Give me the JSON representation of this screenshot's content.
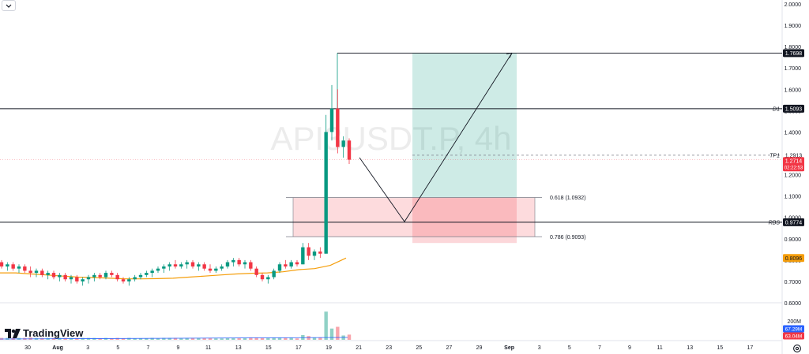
{
  "chart_data": {
    "type": "candlestick",
    "symbol_watermark": "API3USDT.P, 4h",
    "price_axis": {
      "scale": "linear",
      "range": [
        0.6,
        2.0
      ],
      "ticks": [
        "2.0000",
        "1.9000",
        "1.8000",
        "1.7000",
        "1.6000",
        "1.5000",
        "1.4000",
        "1.3000",
        "1.2000",
        "1.1000",
        "1.0000",
        "0.9000",
        "0.8000",
        "0.7000",
        "0.6000"
      ]
    },
    "time_axis": {
      "labels": [
        "30",
        "Aug",
        "3",
        "5",
        "7",
        "9",
        "11",
        "13",
        "15",
        "17",
        "19",
        "21",
        "23",
        "25",
        "27",
        "29",
        "Sep",
        "3",
        "5",
        "7",
        "9",
        "11",
        "13",
        "15",
        "17"
      ],
      "bold_labels": [
        "Aug",
        "Sep"
      ]
    },
    "horizontal_levels": [
      {
        "name": "D1",
        "price": 1.5093,
        "label": "1.5093",
        "style": "solid"
      },
      {
        "name": "RBS",
        "price": 0.9774,
        "label": "0.9774",
        "style": "solid"
      },
      {
        "name": "",
        "price": 1.7698,
        "label": "1.7698",
        "style": "thin"
      },
      {
        "name": "TP1",
        "price": 1.2913,
        "label": "1.2913",
        "style": "dashed"
      }
    ],
    "current_price": {
      "price": 1.2714,
      "label": "1.2714",
      "countdown": "02:22:53",
      "color": "#f23645"
    },
    "moving_average": {
      "label": "0.8096",
      "color": "#f59e0b",
      "values": [
        0.74,
        0.74,
        0.735,
        0.73,
        0.725,
        0.72,
        0.718,
        0.715,
        0.712,
        0.712,
        0.713,
        0.715,
        0.72,
        0.725,
        0.73,
        0.735,
        0.738,
        0.74,
        0.745,
        0.755,
        0.76,
        0.775,
        0.8096
      ]
    },
    "fib_zone": {
      "upper": {
        "label": "0.618 (1.0932)",
        "price": 1.0932
      },
      "lower": {
        "label": "0.786 (0.9093)",
        "price": 0.9093
      }
    },
    "position_tool": {
      "target": 1.7698,
      "entry": 1.0932,
      "stop": 0.88
    },
    "projection_path": [
      1.28,
      0.98,
      1.77
    ],
    "volume": {
      "axis_label": "200M",
      "labels": [
        {
          "text": "67.29M",
          "color": "#2962ff"
        },
        {
          "text": "63.04M",
          "color": "#f23645"
        }
      ]
    },
    "candles": [
      [
        0.79,
        0.8,
        0.76,
        0.77
      ],
      [
        0.77,
        0.79,
        0.75,
        0.78
      ],
      [
        0.78,
        0.79,
        0.75,
        0.76
      ],
      [
        0.76,
        0.78,
        0.74,
        0.77
      ],
      [
        0.77,
        0.78,
        0.74,
        0.75
      ],
      [
        0.75,
        0.77,
        0.72,
        0.74
      ],
      [
        0.74,
        0.76,
        0.72,
        0.75
      ],
      [
        0.75,
        0.76,
        0.72,
        0.73
      ],
      [
        0.73,
        0.75,
        0.71,
        0.74
      ],
      [
        0.74,
        0.75,
        0.71,
        0.72
      ],
      [
        0.72,
        0.74,
        0.7,
        0.73
      ],
      [
        0.73,
        0.74,
        0.7,
        0.71
      ],
      [
        0.71,
        0.73,
        0.69,
        0.72
      ],
      [
        0.72,
        0.73,
        0.69,
        0.7
      ],
      [
        0.7,
        0.72,
        0.68,
        0.71
      ],
      [
        0.71,
        0.73,
        0.69,
        0.72
      ],
      [
        0.72,
        0.74,
        0.7,
        0.73
      ],
      [
        0.73,
        0.74,
        0.71,
        0.72
      ],
      [
        0.72,
        0.75,
        0.71,
        0.74
      ],
      [
        0.74,
        0.75,
        0.72,
        0.73
      ],
      [
        0.73,
        0.74,
        0.7,
        0.71
      ],
      [
        0.71,
        0.72,
        0.69,
        0.7
      ],
      [
        0.7,
        0.72,
        0.68,
        0.71
      ],
      [
        0.71,
        0.73,
        0.7,
        0.72
      ],
      [
        0.72,
        0.74,
        0.71,
        0.73
      ],
      [
        0.73,
        0.75,
        0.72,
        0.74
      ],
      [
        0.74,
        0.76,
        0.72,
        0.75
      ],
      [
        0.75,
        0.77,
        0.74,
        0.76
      ],
      [
        0.76,
        0.78,
        0.74,
        0.77
      ],
      [
        0.77,
        0.79,
        0.75,
        0.78
      ],
      [
        0.78,
        0.8,
        0.76,
        0.77
      ],
      [
        0.77,
        0.79,
        0.76,
        0.78
      ],
      [
        0.78,
        0.8,
        0.76,
        0.79
      ],
      [
        0.79,
        0.8,
        0.76,
        0.77
      ],
      [
        0.77,
        0.79,
        0.75,
        0.78
      ],
      [
        0.78,
        0.79,
        0.75,
        0.76
      ],
      [
        0.76,
        0.78,
        0.74,
        0.75
      ],
      [
        0.75,
        0.77,
        0.74,
        0.76
      ],
      [
        0.76,
        0.78,
        0.75,
        0.77
      ],
      [
        0.77,
        0.8,
        0.76,
        0.79
      ],
      [
        0.79,
        0.81,
        0.77,
        0.8
      ],
      [
        0.8,
        0.81,
        0.77,
        0.78
      ],
      [
        0.78,
        0.8,
        0.76,
        0.79
      ],
      [
        0.79,
        0.8,
        0.75,
        0.76
      ],
      [
        0.76,
        0.77,
        0.72,
        0.73
      ],
      [
        0.73,
        0.74,
        0.7,
        0.71
      ],
      [
        0.71,
        0.73,
        0.69,
        0.72
      ],
      [
        0.72,
        0.76,
        0.71,
        0.75
      ],
      [
        0.75,
        0.79,
        0.74,
        0.78
      ],
      [
        0.78,
        0.8,
        0.76,
        0.77
      ],
      [
        0.77,
        0.8,
        0.76,
        0.79
      ],
      [
        0.79,
        0.8,
        0.77,
        0.78
      ],
      [
        0.78,
        0.88,
        0.78,
        0.86
      ],
      [
        0.86,
        0.88,
        0.8,
        0.82
      ],
      [
        0.82,
        0.85,
        0.8,
        0.84
      ],
      [
        0.84,
        0.86,
        0.81,
        0.83
      ],
      [
        0.83,
        1.48,
        0.83,
        1.4
      ],
      [
        1.4,
        1.62,
        1.36,
        1.51
      ],
      [
        1.51,
        1.6,
        1.3,
        1.33
      ],
      [
        1.33,
        1.38,
        1.28,
        1.36
      ],
      [
        1.36,
        1.37,
        1.25,
        1.27
      ]
    ]
  }
}
